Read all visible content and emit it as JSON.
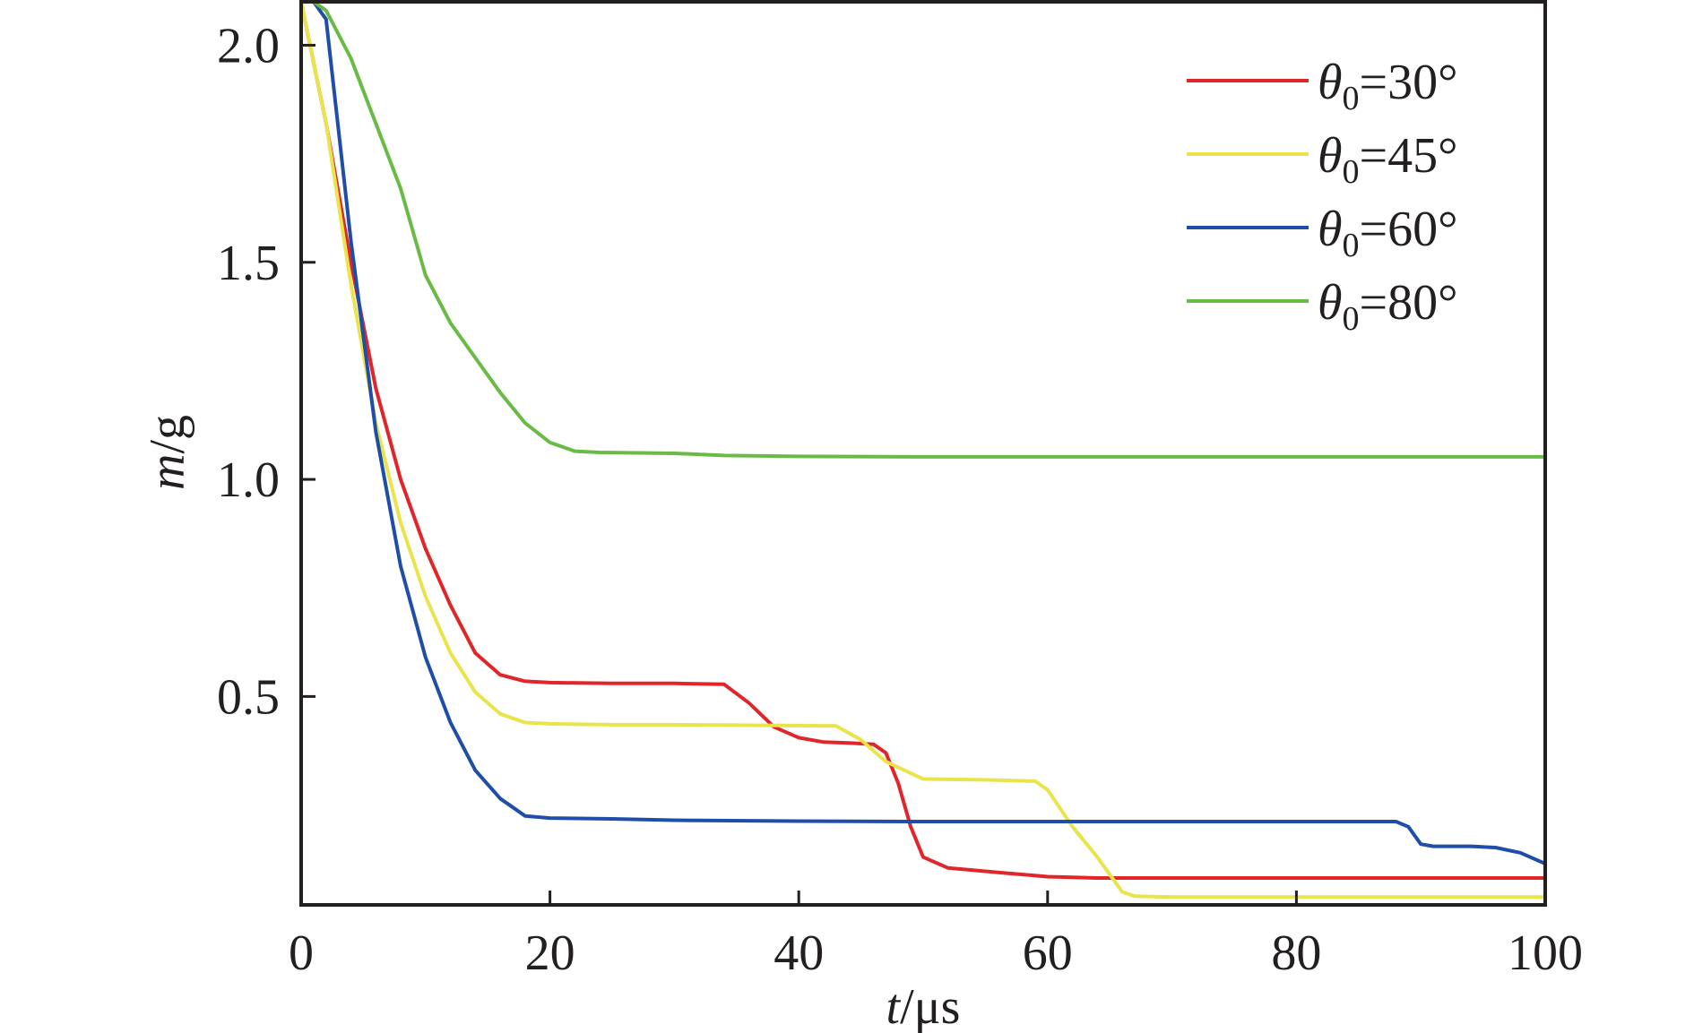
{
  "chart_data": {
    "type": "line",
    "xlabel": {
      "var": "t",
      "unit": "/μs"
    },
    "ylabel": {
      "var": "m",
      "unit": "/g"
    },
    "xlim": [
      0,
      100
    ],
    "ylim": [
      0.02,
      2.1
    ],
    "xticks": [
      0,
      20,
      40,
      60,
      80,
      100
    ],
    "yticks": [
      0.5,
      1.0,
      1.5,
      2.0
    ],
    "xtick_labels": [
      "0",
      "20",
      "40",
      "60",
      "80",
      "100"
    ],
    "ytick_labels": [
      "0.5",
      "1.0",
      "1.5",
      "2.0"
    ],
    "grid": false,
    "legend_position": "top-right",
    "series": [
      {
        "name": "θ0=30°",
        "legend": {
          "symbol": "θ",
          "sub": "0",
          "value": "=30°"
        },
        "color": "#e0262a",
        "x": [
          0,
          2,
          4,
          6,
          8,
          10,
          12,
          14,
          16,
          18,
          20,
          25,
          30,
          34,
          36,
          38,
          40,
          42,
          44,
          46,
          47,
          48,
          49,
          50,
          52,
          56,
          60,
          64,
          70,
          80,
          90,
          100
        ],
        "y": [
          2.1,
          1.82,
          1.5,
          1.21,
          1.0,
          0.84,
          0.71,
          0.6,
          0.55,
          0.535,
          0.532,
          0.53,
          0.53,
          0.528,
          0.485,
          0.43,
          0.405,
          0.395,
          0.393,
          0.39,
          0.37,
          0.3,
          0.2,
          0.13,
          0.105,
          0.095,
          0.085,
          0.082,
          0.082,
          0.082,
          0.082,
          0.082
        ]
      },
      {
        "name": "θ0=45°",
        "legend": {
          "symbol": "θ",
          "sub": "0",
          "value": "=45°"
        },
        "color": "#e9e34c",
        "x": [
          0,
          2,
          4,
          6,
          8,
          10,
          12,
          14,
          16,
          18,
          20,
          25,
          30,
          35,
          40,
          43,
          45,
          47,
          50,
          55,
          59,
          60,
          62,
          64,
          65,
          66,
          67,
          70,
          80,
          90,
          100
        ],
        "y": [
          2.1,
          1.82,
          1.45,
          1.13,
          0.9,
          0.73,
          0.6,
          0.51,
          0.46,
          0.44,
          0.437,
          0.435,
          0.435,
          0.434,
          0.433,
          0.432,
          0.4,
          0.35,
          0.31,
          0.308,
          0.305,
          0.285,
          0.2,
          0.13,
          0.09,
          0.05,
          0.04,
          0.038,
          0.038,
          0.038,
          0.038
        ]
      },
      {
        "name": "θ0=60°",
        "legend": {
          "symbol": "θ",
          "sub": "0",
          "value": "=60°"
        },
        "color": "#1f4ea8",
        "x": [
          0,
          1,
          2,
          4,
          6,
          8,
          10,
          12,
          14,
          16,
          18,
          20,
          25,
          30,
          40,
          50,
          60,
          70,
          80,
          88,
          89,
          90,
          91,
          92,
          94,
          96,
          98,
          100
        ],
        "y": [
          2.1,
          2.1,
          2.06,
          1.55,
          1.11,
          0.8,
          0.59,
          0.44,
          0.33,
          0.265,
          0.225,
          0.22,
          0.218,
          0.215,
          0.213,
          0.212,
          0.212,
          0.212,
          0.212,
          0.212,
          0.2,
          0.16,
          0.155,
          0.155,
          0.155,
          0.152,
          0.14,
          0.115
        ]
      },
      {
        "name": "θ0=80°",
        "legend": {
          "symbol": "θ",
          "sub": "0",
          "value": "=80°"
        },
        "color": "#6aba46",
        "x": [
          0,
          1,
          2,
          4,
          6,
          8,
          10,
          12,
          14,
          16,
          18,
          20,
          22,
          24,
          30,
          34,
          40,
          50,
          60,
          70,
          80,
          90,
          100
        ],
        "y": [
          2.1,
          2.1,
          2.08,
          1.97,
          1.82,
          1.67,
          1.47,
          1.36,
          1.28,
          1.2,
          1.13,
          1.085,
          1.065,
          1.062,
          1.06,
          1.055,
          1.053,
          1.052,
          1.052,
          1.052,
          1.052,
          1.052,
          1.052
        ]
      }
    ]
  }
}
